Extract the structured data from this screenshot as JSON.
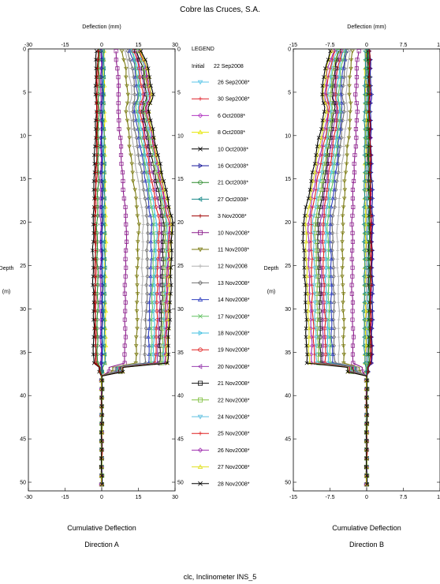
{
  "title": "Cobre las Cruces, S.A.",
  "footer": "clc, Inclinometer INS_5",
  "legend": {
    "heading": "LEGEND",
    "initial_label": "Initial",
    "initial_date": "22 Sep2008"
  },
  "colors": {
    "series": [
      "#5bc6e8",
      "#e0202a",
      "#b23ac2",
      "#e6e600",
      "#000000",
      "#1a1a9c",
      "#2a8a2a",
      "#1a8a8a",
      "#a00000",
      "#8a1a8a",
      "#7a7a10",
      "#b0b0b0",
      "#707070",
      "#3040c0",
      "#60c060",
      "#40c0e0",
      "#e02020",
      "#9a40b0",
      "#101010",
      "#80c040",
      "#60c0e0",
      "#e02020",
      "#a030b0",
      "#e0e020",
      "#000000"
    ]
  },
  "chart_data": [
    {
      "type": "line",
      "panel": "A",
      "xlabel_top": "Deflection (mm)",
      "ylabel": "Depth",
      "yunit": "(m)",
      "caption": "Cumulative Deflection",
      "direction": "Direction  A",
      "xlim": [
        -30,
        30
      ],
      "ylim": [
        0,
        51
      ],
      "x_ticks": [
        "-30",
        "-15",
        "0",
        "15",
        "30"
      ],
      "y_ticks": [
        "0",
        "5",
        "10",
        "15",
        "20",
        "25",
        "30",
        "35",
        "40",
        "45",
        "50"
      ],
      "initial_date": "22 Sep2008",
      "series": [
        {
          "name": "26 Sep2008*",
          "marker": "triangle-down",
          "max": 0.5
        },
        {
          "name": "30 Sep2008*",
          "marker": "plus",
          "max": -2.5
        },
        {
          "name": "6 Oct2008*",
          "marker": "diamond",
          "max": -0.5
        },
        {
          "name": "8 Oct2008*",
          "marker": "triangle",
          "max": 1.5
        },
        {
          "name": "10 Oct2008*",
          "marker": "x",
          "max": -3.5
        },
        {
          "name": "16 Oct2008*",
          "marker": "triangle-right",
          "max": 0.2
        },
        {
          "name": "21 Oct2008*",
          "marker": "circle",
          "max": -1.8
        },
        {
          "name": "27 Oct2008*",
          "marker": "triangle-left",
          "max": 1.2
        },
        {
          "name": "3 Nov2008*",
          "marker": "plus",
          "max": -2.8
        },
        {
          "name": "10 Nov2008*",
          "marker": "square",
          "max": 10
        },
        {
          "name": "11 Nov2008*",
          "marker": "triangle-down",
          "max": 15
        },
        {
          "name": "12 Nov2008",
          "marker": "plus",
          "max": 17
        },
        {
          "name": "13 Nov2008*",
          "marker": "diamond",
          "max": 19
        },
        {
          "name": "14 Nov2008*",
          "marker": "triangle",
          "max": 20.5
        },
        {
          "name": "17 Nov2008*",
          "marker": "x",
          "max": 21.5
        },
        {
          "name": "18 Nov2008*",
          "marker": "triangle-right",
          "max": 22.5
        },
        {
          "name": "19 Nov2008*",
          "marker": "circle",
          "max": 23.5
        },
        {
          "name": "20 Nov2008*",
          "marker": "triangle-left",
          "max": 24.5
        },
        {
          "name": "21 Nov2008*",
          "marker": "square",
          "max": 25.5
        },
        {
          "name": "22 Nov2008*",
          "marker": "square",
          "max": 26.5
        },
        {
          "name": "24 Nov2008*",
          "marker": "triangle-down",
          "max": 27
        },
        {
          "name": "25 Nov2008*",
          "marker": "plus",
          "max": 27.5
        },
        {
          "name": "26 Nov2008*",
          "marker": "diamond",
          "max": 28
        },
        {
          "name": "27 Nov2008*",
          "marker": "triangle",
          "max": 28.5
        },
        {
          "name": "28 Nov2008*",
          "marker": "x",
          "max": 29
        }
      ]
    },
    {
      "type": "line",
      "panel": "B",
      "xlabel_top": "Deflection (mm)",
      "ylabel": "Depth",
      "yunit": "(m)",
      "caption": "Cumulative Deflection",
      "direction": "Direction  B",
      "xlim": [
        -15,
        15
      ],
      "ylim": [
        0,
        51
      ],
      "x_ticks": [
        "-15",
        "-7.5",
        "0",
        "7.5",
        "15"
      ],
      "y_ticks": [
        "0",
        "5",
        "10",
        "15",
        "20",
        "25",
        "30",
        "35",
        "40",
        "45",
        "50"
      ],
      "initial_date": "22 Sep2008",
      "series": [
        {
          "name": "26 Sep2008*",
          "marker": "triangle-down",
          "max": 0.3
        },
        {
          "name": "30 Sep2008*",
          "marker": "plus",
          "max": 0.8
        },
        {
          "name": "6 Oct2008*",
          "marker": "diamond",
          "max": 1.0
        },
        {
          "name": "8 Oct2008*",
          "marker": "triangle",
          "max": -0.3
        },
        {
          "name": "10 Oct2008*",
          "marker": "x",
          "max": 0.5
        },
        {
          "name": "16 Oct2008*",
          "marker": "triangle-right",
          "max": 1.2
        },
        {
          "name": "21 Oct2008*",
          "marker": "circle",
          "max": 0.6
        },
        {
          "name": "27 Oct2008*",
          "marker": "triangle-left",
          "max": -0.5
        },
        {
          "name": "3 Nov2008*",
          "marker": "plus",
          "max": 0.9
        },
        {
          "name": "10 Nov2008*",
          "marker": "square",
          "max": -3.0
        },
        {
          "name": "11 Nov2008*",
          "marker": "triangle-down",
          "max": -5.0
        },
        {
          "name": "12 Nov2008",
          "marker": "plus",
          "max": -6.0
        },
        {
          "name": "13 Nov2008*",
          "marker": "diamond",
          "max": -7.0
        },
        {
          "name": "14 Nov2008*",
          "marker": "triangle",
          "max": -7.5
        },
        {
          "name": "17 Nov2008*",
          "marker": "x",
          "max": -8.0
        },
        {
          "name": "18 Nov2008*",
          "marker": "triangle-right",
          "max": -8.5
        },
        {
          "name": "19 Nov2008*",
          "marker": "circle",
          "max": -9.0
        },
        {
          "name": "20 Nov2008*",
          "marker": "triangle-left",
          "max": -9.5
        },
        {
          "name": "21 Nov2008*",
          "marker": "square",
          "max": -10.0
        },
        {
          "name": "22 Nov2008*",
          "marker": "square",
          "max": -10.5
        },
        {
          "name": "24 Nov2008*",
          "marker": "triangle-down",
          "max": -11.0
        },
        {
          "name": "25 Nov2008*",
          "marker": "plus",
          "max": -11.5
        },
        {
          "name": "26 Nov2008*",
          "marker": "diamond",
          "max": -12.0
        },
        {
          "name": "27 Nov2008*",
          "marker": "triangle",
          "max": -12.5
        },
        {
          "name": "28 Nov2008*",
          "marker": "x",
          "max": -13.0
        }
      ]
    }
  ]
}
